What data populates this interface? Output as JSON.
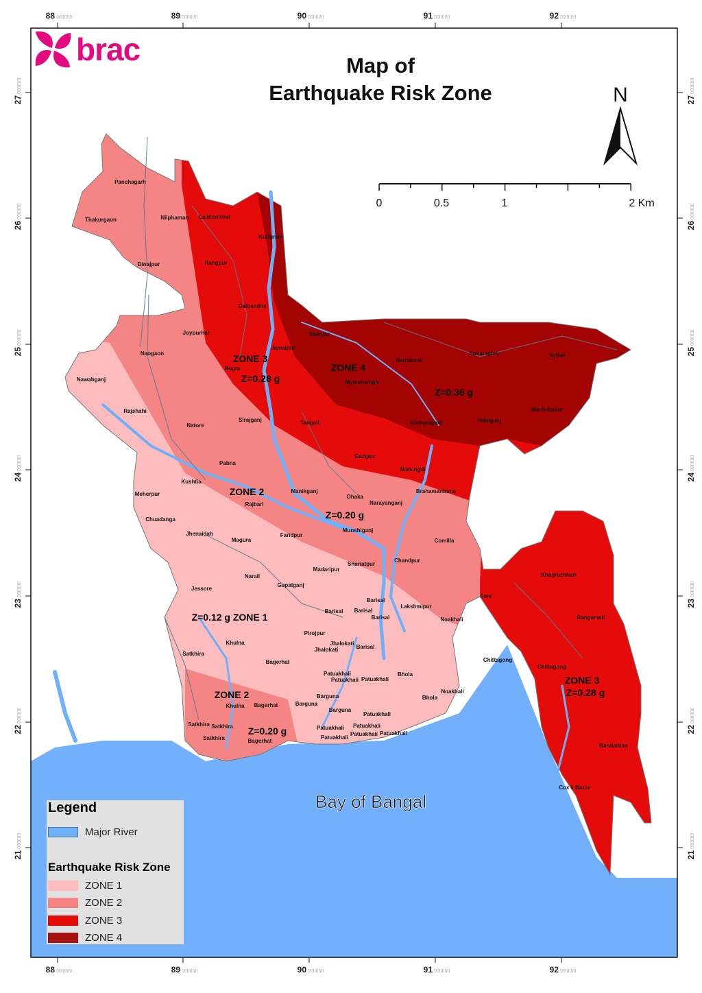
{
  "title": {
    "line1": "Map of",
    "line2": "Earthquake Risk Zone"
  },
  "logo": {
    "text": "brac",
    "color": "#e5097f"
  },
  "north_arrow": {
    "label": "N"
  },
  "scale_bar": {
    "labels": [
      "0",
      "0.5",
      "1",
      "2 Km"
    ]
  },
  "axes": {
    "longitude": {
      "ticks": [
        "88",
        "89",
        "90",
        "91",
        "92"
      ],
      "suffix": "000000"
    },
    "latitude": {
      "ticks": [
        "27",
        "26",
        "25",
        "24",
        "23",
        "22",
        "21"
      ],
      "suffix": "000000"
    }
  },
  "colors": {
    "zone1": "#fcbcbd",
    "zone2": "#f58585",
    "zone3": "#e60b0b",
    "zone4": "#a30303",
    "river": "#6fb0fb",
    "sea": "#72b0fb"
  },
  "sea_label": "Bay of Bangal",
  "zone_labels": [
    "ZONE 3",
    "Z=0.28 g",
    "ZONE 4",
    "Z=0.36 g",
    "ZONE 2",
    "Z=0.20 g",
    "Z=0.12 g ZONE 1",
    "ZONE 2",
    "Z=0.20 g",
    "ZONE 3",
    "Z=0.28 g"
  ],
  "districts": [
    "Panchagarh",
    "Thakurgaon",
    "Nilphamari",
    "Lalmonirhat",
    "Kurigram",
    "Dinajpur",
    "Rangpur",
    "Gaibandha",
    "Joypurhat",
    "Naogaon",
    "Jamalpur",
    "Sherpur",
    "Bogra",
    "Netrakona",
    "Sunamganj",
    "Sylhet",
    "Mymensingh",
    "Nawabganj",
    "Rajshahi",
    "Natore",
    "Sirajganj",
    "Tangail",
    "Kishoreganj",
    "Habiganj",
    "Maulvibazar",
    "Gazipur",
    "Pabna",
    "Narsingdi",
    "Kushtia",
    "Brahamanbaria",
    "Meherpur",
    "Manikganj",
    "Rajbari",
    "Dhaka",
    "Narayanganj",
    "Chuadanga",
    "Jhenaidah",
    "Munshiganj",
    "Magura",
    "Faridpur",
    "Comilla",
    "Shariatpur",
    "Chandpur",
    "Madaripur",
    "Narail",
    "Gopalganj",
    "Jessore",
    "Khagrachhari",
    "Feni",
    "Barisal",
    "Lakshmipur",
    "Barisal",
    "Barisal",
    "Barisal",
    "Noakhali",
    "Rangamati",
    "Pirojpur",
    "Jhalokati",
    "Jhalokati",
    "Barisal",
    "Khulna",
    "Satkhira",
    "Bagerhat",
    "Chittagong",
    "Chittagong",
    "Patuakhali",
    "Patuakhali",
    "Patuakhali",
    "Bhola",
    "Noakhali",
    "Bhola",
    "Khulna",
    "Bagerhat",
    "Barguna",
    "Barguna",
    "Barguna",
    "Patuakhali",
    "Satkhira",
    "Satkhira",
    "Patuakhali",
    "Patuakhali",
    "Patuakhali",
    "Patuakhali",
    "Satkhira",
    "Bagerhat",
    "Patuakhali",
    "Bandarban",
    "Cox's Bazar"
  ],
  "legend": {
    "title": "Legend",
    "river_label": "Major River",
    "zone_title": "Earthquake Risk Zone",
    "zones": [
      "ZONE 1",
      "ZONE 2",
      "ZONE 3",
      "ZONE 4"
    ]
  }
}
